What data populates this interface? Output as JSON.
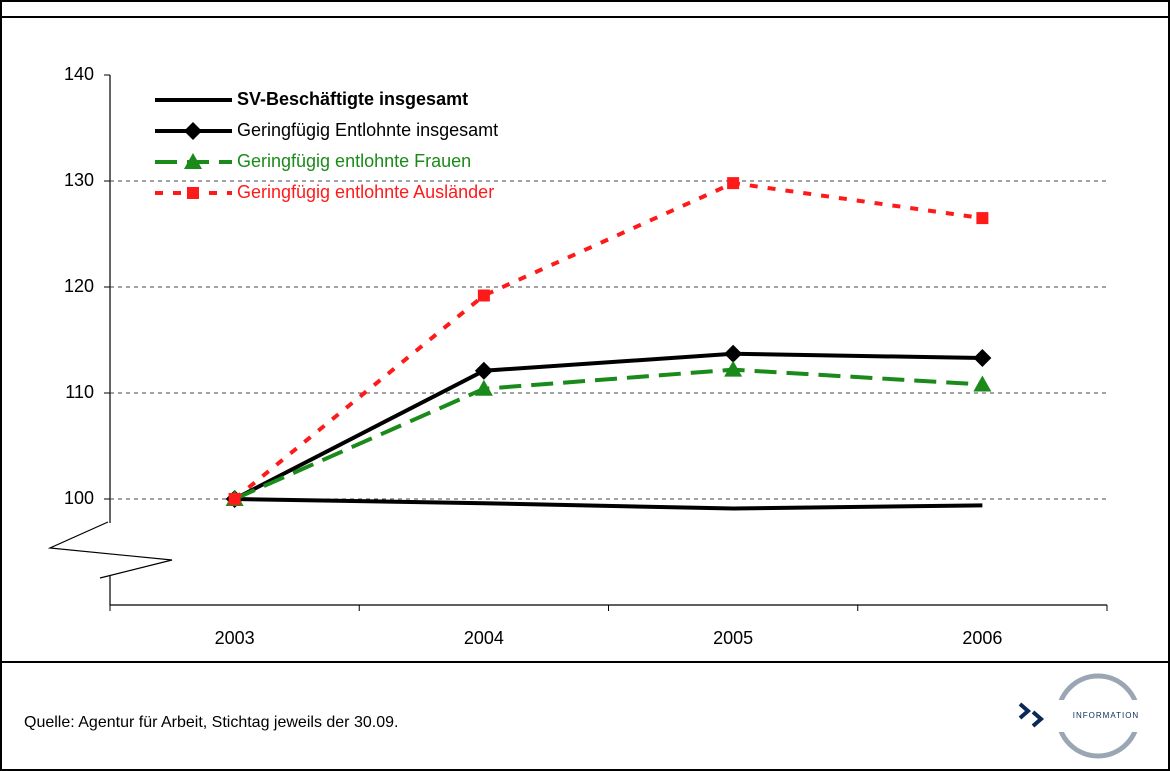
{
  "chart_data": {
    "type": "line",
    "categories": [
      "2003",
      "2004",
      "2005",
      "2006"
    ],
    "series": [
      {
        "name": "SV-Beschäftigte insgesamt",
        "color": "#000000",
        "style": "solid",
        "marker": "none",
        "values": [
          100,
          99.6,
          99.1,
          99.4
        ]
      },
      {
        "name": "Geringfügig Entlohnte insgesamt",
        "color": "#000000",
        "style": "solid",
        "marker": "diamond",
        "values": [
          100,
          112.1,
          113.7,
          113.3
        ]
      },
      {
        "name": "Geringfügig entlohnte Frauen",
        "color": "#1a8a1a",
        "style": "dashed",
        "marker": "triangle",
        "values": [
          100,
          110.4,
          112.2,
          110.8
        ]
      },
      {
        "name": "Geringfügig entlohnte Ausländer",
        "color": "#ff1a1a",
        "style": "dotted",
        "marker": "square",
        "values": [
          100,
          119.2,
          129.8,
          126.5
        ]
      }
    ],
    "ylim": [
      90,
      140
    ],
    "yticks": [
      100,
      110,
      120,
      130,
      140
    ],
    "grid": true,
    "legend": "upper left",
    "source": "Quelle:  Agentur für Arbeit, Stichtag jeweils der 30.09.",
    "logo_text": "INFORMATION"
  }
}
